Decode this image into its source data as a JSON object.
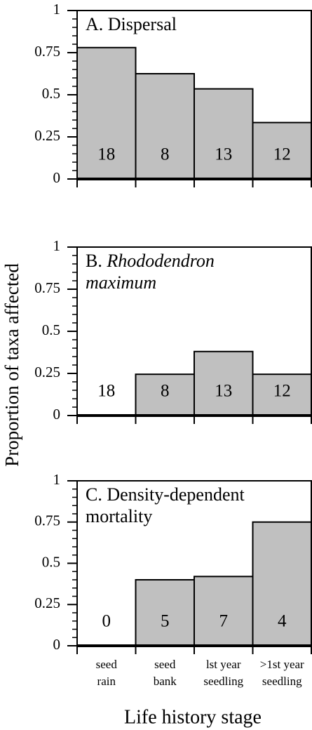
{
  "y_label": "Proportion of taxa affected",
  "x_label": "Life history stage",
  "chart_data": [
    {
      "type": "bar",
      "title_lines": [
        [
          {
            "text": "A. Dispersal"
          }
        ]
      ],
      "values": [
        0.78,
        0.625,
        0.535,
        0.335
      ],
      "n_labels": [
        18,
        8,
        13,
        12
      ],
      "color": "#c0c0c0",
      "ylim": [
        0,
        1
      ],
      "yticks": [
        0,
        0.25,
        0.5,
        0.75,
        1
      ]
    },
    {
      "type": "bar",
      "title_lines": [
        [
          {
            "text": "B. "
          },
          {
            "text": "Rhododendron",
            "italic": true
          }
        ],
        [
          {
            "text": "maximum",
            "italic": true
          }
        ]
      ],
      "values": [
        0,
        0.245,
        0.38,
        0.245
      ],
      "n_labels": [
        18,
        8,
        13,
        12
      ],
      "color": "#c0c0c0",
      "ylim": [
        0,
        1
      ],
      "yticks": [
        0,
        0.25,
        0.5,
        0.75,
        1
      ]
    },
    {
      "type": "bar",
      "title_lines": [
        [
          {
            "text": "C. Density-dependent"
          }
        ],
        [
          {
            "text": "mortality"
          }
        ]
      ],
      "values": [
        0,
        0.4,
        0.42,
        0.75
      ],
      "n_labels": [
        0,
        5,
        7,
        4
      ],
      "color": "#c0c0c0",
      "ylim": [
        0,
        1
      ],
      "yticks": [
        0,
        0.25,
        0.5,
        0.75,
        1
      ],
      "categories": [
        [
          "seed",
          "rain"
        ],
        [
          "seed",
          "bank"
        ],
        [
          "lst year",
          "seedling"
        ],
        [
          ">1st year",
          "seedling"
        ]
      ]
    }
  ]
}
